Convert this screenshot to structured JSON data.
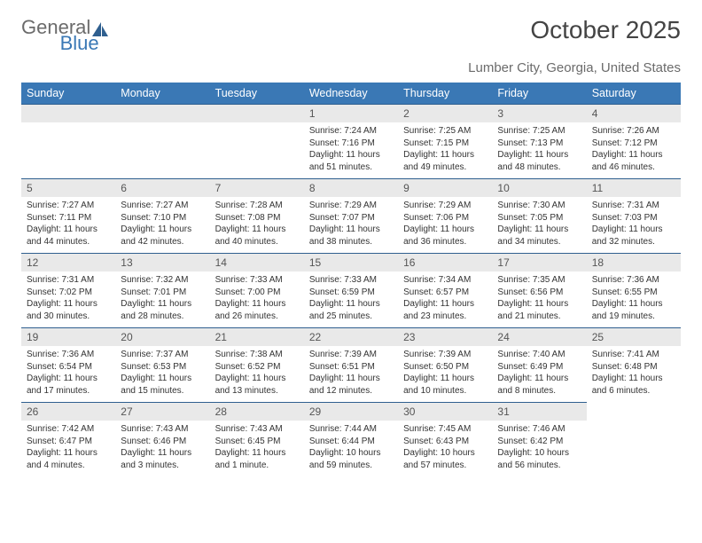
{
  "logo": {
    "text1": "General",
    "text2": "Blue"
  },
  "title": "October 2025",
  "location": "Lumber City, Georgia, United States",
  "day_headers": [
    "Sunday",
    "Monday",
    "Tuesday",
    "Wednesday",
    "Thursday",
    "Friday",
    "Saturday"
  ],
  "colors": {
    "header_bg": "#3a78b5",
    "header_text": "#ffffff",
    "daybar_bg": "#e9e9e9",
    "daybar_text": "#555555",
    "body_text": "#333333",
    "rule": "#2f5f8f"
  },
  "fonts": {
    "title_size": 28,
    "location_size": 15,
    "header_size": 12.5,
    "daynum_size": 12,
    "body_size": 10
  },
  "weeks": [
    [
      null,
      null,
      null,
      {
        "num": "1",
        "sunrise": "Sunrise: 7:24 AM",
        "sunset": "Sunset: 7:16 PM",
        "daylight": "Daylight: 11 hours and 51 minutes."
      },
      {
        "num": "2",
        "sunrise": "Sunrise: 7:25 AM",
        "sunset": "Sunset: 7:15 PM",
        "daylight": "Daylight: 11 hours and 49 minutes."
      },
      {
        "num": "3",
        "sunrise": "Sunrise: 7:25 AM",
        "sunset": "Sunset: 7:13 PM",
        "daylight": "Daylight: 11 hours and 48 minutes."
      },
      {
        "num": "4",
        "sunrise": "Sunrise: 7:26 AM",
        "sunset": "Sunset: 7:12 PM",
        "daylight": "Daylight: 11 hours and 46 minutes."
      }
    ],
    [
      {
        "num": "5",
        "sunrise": "Sunrise: 7:27 AM",
        "sunset": "Sunset: 7:11 PM",
        "daylight": "Daylight: 11 hours and 44 minutes."
      },
      {
        "num": "6",
        "sunrise": "Sunrise: 7:27 AM",
        "sunset": "Sunset: 7:10 PM",
        "daylight": "Daylight: 11 hours and 42 minutes."
      },
      {
        "num": "7",
        "sunrise": "Sunrise: 7:28 AM",
        "sunset": "Sunset: 7:08 PM",
        "daylight": "Daylight: 11 hours and 40 minutes."
      },
      {
        "num": "8",
        "sunrise": "Sunrise: 7:29 AM",
        "sunset": "Sunset: 7:07 PM",
        "daylight": "Daylight: 11 hours and 38 minutes."
      },
      {
        "num": "9",
        "sunrise": "Sunrise: 7:29 AM",
        "sunset": "Sunset: 7:06 PM",
        "daylight": "Daylight: 11 hours and 36 minutes."
      },
      {
        "num": "10",
        "sunrise": "Sunrise: 7:30 AM",
        "sunset": "Sunset: 7:05 PM",
        "daylight": "Daylight: 11 hours and 34 minutes."
      },
      {
        "num": "11",
        "sunrise": "Sunrise: 7:31 AM",
        "sunset": "Sunset: 7:03 PM",
        "daylight": "Daylight: 11 hours and 32 minutes."
      }
    ],
    [
      {
        "num": "12",
        "sunrise": "Sunrise: 7:31 AM",
        "sunset": "Sunset: 7:02 PM",
        "daylight": "Daylight: 11 hours and 30 minutes."
      },
      {
        "num": "13",
        "sunrise": "Sunrise: 7:32 AM",
        "sunset": "Sunset: 7:01 PM",
        "daylight": "Daylight: 11 hours and 28 minutes."
      },
      {
        "num": "14",
        "sunrise": "Sunrise: 7:33 AM",
        "sunset": "Sunset: 7:00 PM",
        "daylight": "Daylight: 11 hours and 26 minutes."
      },
      {
        "num": "15",
        "sunrise": "Sunrise: 7:33 AM",
        "sunset": "Sunset: 6:59 PM",
        "daylight": "Daylight: 11 hours and 25 minutes."
      },
      {
        "num": "16",
        "sunrise": "Sunrise: 7:34 AM",
        "sunset": "Sunset: 6:57 PM",
        "daylight": "Daylight: 11 hours and 23 minutes."
      },
      {
        "num": "17",
        "sunrise": "Sunrise: 7:35 AM",
        "sunset": "Sunset: 6:56 PM",
        "daylight": "Daylight: 11 hours and 21 minutes."
      },
      {
        "num": "18",
        "sunrise": "Sunrise: 7:36 AM",
        "sunset": "Sunset: 6:55 PM",
        "daylight": "Daylight: 11 hours and 19 minutes."
      }
    ],
    [
      {
        "num": "19",
        "sunrise": "Sunrise: 7:36 AM",
        "sunset": "Sunset: 6:54 PM",
        "daylight": "Daylight: 11 hours and 17 minutes."
      },
      {
        "num": "20",
        "sunrise": "Sunrise: 7:37 AM",
        "sunset": "Sunset: 6:53 PM",
        "daylight": "Daylight: 11 hours and 15 minutes."
      },
      {
        "num": "21",
        "sunrise": "Sunrise: 7:38 AM",
        "sunset": "Sunset: 6:52 PM",
        "daylight": "Daylight: 11 hours and 13 minutes."
      },
      {
        "num": "22",
        "sunrise": "Sunrise: 7:39 AM",
        "sunset": "Sunset: 6:51 PM",
        "daylight": "Daylight: 11 hours and 12 minutes."
      },
      {
        "num": "23",
        "sunrise": "Sunrise: 7:39 AM",
        "sunset": "Sunset: 6:50 PM",
        "daylight": "Daylight: 11 hours and 10 minutes."
      },
      {
        "num": "24",
        "sunrise": "Sunrise: 7:40 AM",
        "sunset": "Sunset: 6:49 PM",
        "daylight": "Daylight: 11 hours and 8 minutes."
      },
      {
        "num": "25",
        "sunrise": "Sunrise: 7:41 AM",
        "sunset": "Sunset: 6:48 PM",
        "daylight": "Daylight: 11 hours and 6 minutes."
      }
    ],
    [
      {
        "num": "26",
        "sunrise": "Sunrise: 7:42 AM",
        "sunset": "Sunset: 6:47 PM",
        "daylight": "Daylight: 11 hours and 4 minutes."
      },
      {
        "num": "27",
        "sunrise": "Sunrise: 7:43 AM",
        "sunset": "Sunset: 6:46 PM",
        "daylight": "Daylight: 11 hours and 3 minutes."
      },
      {
        "num": "28",
        "sunrise": "Sunrise: 7:43 AM",
        "sunset": "Sunset: 6:45 PM",
        "daylight": "Daylight: 11 hours and 1 minute."
      },
      {
        "num": "29",
        "sunrise": "Sunrise: 7:44 AM",
        "sunset": "Sunset: 6:44 PM",
        "daylight": "Daylight: 10 hours and 59 minutes."
      },
      {
        "num": "30",
        "sunrise": "Sunrise: 7:45 AM",
        "sunset": "Sunset: 6:43 PM",
        "daylight": "Daylight: 10 hours and 57 minutes."
      },
      {
        "num": "31",
        "sunrise": "Sunrise: 7:46 AM",
        "sunset": "Sunset: 6:42 PM",
        "daylight": "Daylight: 10 hours and 56 minutes."
      },
      null
    ]
  ]
}
